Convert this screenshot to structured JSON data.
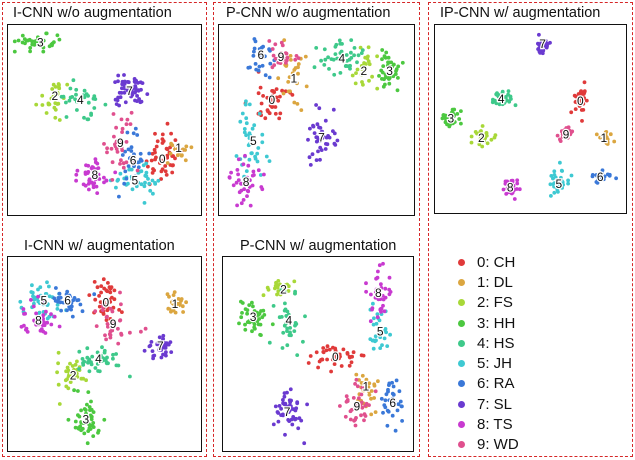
{
  "legend": {
    "items": [
      {
        "label": "0: CH",
        "color": "#e03a3a"
      },
      {
        "label": "1: DL",
        "color": "#dba640"
      },
      {
        "label": "2: FS",
        "color": "#a8d838"
      },
      {
        "label": "3: HH",
        "color": "#4cc840"
      },
      {
        "label": "4: HS",
        "color": "#3ec98a"
      },
      {
        "label": "5: JH",
        "color": "#3ec9d2"
      },
      {
        "label": "6: RA",
        "color": "#3a78d8"
      },
      {
        "label": "7: SL",
        "color": "#6a3ad0"
      },
      {
        "label": "8: TS",
        "color": "#c83ad0"
      },
      {
        "label": "9: WD",
        "color": "#e0508e"
      }
    ]
  },
  "chart_data": [
    {
      "type": "scatter",
      "title": "I-CNN w/o augmentation",
      "xlim": [
        0,
        100
      ],
      "ylim": [
        0,
        100
      ],
      "clusters": [
        {
          "label": "0",
          "cx": 82,
          "cy": 28,
          "sx": 6,
          "sy": 8,
          "n": 45
        },
        {
          "label": "1",
          "cx": 91,
          "cy": 34,
          "sx": 3,
          "sy": 3,
          "n": 15
        },
        {
          "label": "2",
          "cx": 23,
          "cy": 63,
          "sx": 5,
          "sy": 5,
          "n": 30
        },
        {
          "label": "3",
          "cx": 15,
          "cy": 93,
          "sx": 6,
          "sy": 2.5,
          "n": 35
        },
        {
          "label": "4",
          "cx": 37,
          "cy": 61,
          "sx": 7,
          "sy": 4,
          "n": 30
        },
        {
          "label": "5",
          "cx": 67,
          "cy": 16,
          "sx": 6,
          "sy": 4,
          "n": 40
        },
        {
          "label": "6",
          "cx": 66,
          "cy": 27,
          "sx": 4,
          "sy": 7,
          "n": 30
        },
        {
          "label": "7",
          "cx": 64,
          "cy": 66,
          "sx": 4.5,
          "sy": 4,
          "n": 55
        },
        {
          "label": "8",
          "cx": 45,
          "cy": 19,
          "sx": 6,
          "sy": 5,
          "n": 40
        },
        {
          "label": "9",
          "cx": 59,
          "cy": 37,
          "sx": 5,
          "sy": 8,
          "n": 35
        }
      ]
    },
    {
      "type": "scatter",
      "title": "P-CNN w/o augmentation",
      "xlim": [
        0,
        100
      ],
      "ylim": [
        0,
        100
      ],
      "clusters": [
        {
          "label": "0",
          "cx": 26,
          "cy": 61,
          "sx": 6,
          "sy": 8,
          "n": 35
        },
        {
          "label": "1",
          "cx": 38,
          "cy": 73,
          "sx": 4,
          "sy": 10,
          "n": 25
        },
        {
          "label": "2",
          "cx": 76,
          "cy": 77,
          "sx": 4,
          "sy": 5,
          "n": 25
        },
        {
          "label": "3",
          "cx": 90,
          "cy": 77,
          "sx": 3,
          "sy": 7,
          "n": 35
        },
        {
          "label": "4",
          "cx": 64,
          "cy": 84,
          "sx": 6,
          "sy": 5,
          "n": 40
        },
        {
          "label": "5",
          "cx": 16,
          "cy": 38,
          "sx": 4,
          "sy": 12,
          "n": 40
        },
        {
          "label": "6",
          "cx": 20,
          "cy": 86,
          "sx": 3,
          "sy": 6,
          "n": 25
        },
        {
          "label": "7",
          "cx": 53,
          "cy": 40,
          "sx": 4,
          "sy": 8,
          "n": 40
        },
        {
          "label": "8",
          "cx": 12,
          "cy": 15,
          "sx": 4,
          "sy": 7,
          "n": 40
        },
        {
          "label": "9",
          "cx": 31,
          "cy": 85,
          "sx": 5,
          "sy": 4,
          "n": 25
        }
      ]
    },
    {
      "type": "scatter",
      "title": "IP-CNN w/ augmentation",
      "xlim": [
        0,
        100
      ],
      "ylim": [
        0,
        100
      ],
      "clusters": [
        {
          "label": "0",
          "cx": 78,
          "cy": 60,
          "sx": 2,
          "sy": 4,
          "n": 30
        },
        {
          "label": "1",
          "cx": 91,
          "cy": 39,
          "sx": 2,
          "sy": 2,
          "n": 15
        },
        {
          "label": "2",
          "cx": 23,
          "cy": 39,
          "sx": 3,
          "sy": 2.5,
          "n": 25
        },
        {
          "label": "3",
          "cx": 6,
          "cy": 50,
          "sx": 2.5,
          "sy": 2.5,
          "n": 30
        },
        {
          "label": "4",
          "cx": 34,
          "cy": 61,
          "sx": 3,
          "sy": 2.5,
          "n": 30
        },
        {
          "label": "5",
          "cx": 66,
          "cy": 13,
          "sx": 2.5,
          "sy": 4,
          "n": 30
        },
        {
          "label": "6",
          "cx": 89,
          "cy": 17,
          "sx": 3,
          "sy": 2.5,
          "n": 25
        },
        {
          "label": "7",
          "cx": 57,
          "cy": 92,
          "sx": 2,
          "sy": 2.5,
          "n": 30
        },
        {
          "label": "8",
          "cx": 39,
          "cy": 11,
          "sx": 2.5,
          "sy": 3,
          "n": 30
        },
        {
          "label": "9",
          "cx": 70,
          "cy": 41,
          "sx": 2,
          "sy": 3,
          "n": 25
        }
      ]
    },
    {
      "type": "scatter",
      "title": "I-CNN w/ augmentation",
      "xlim": [
        0,
        100
      ],
      "ylim": [
        0,
        100
      ],
      "clusters": [
        {
          "label": "0",
          "cx": 51,
          "cy": 78,
          "sx": 4,
          "sy": 6,
          "n": 40
        },
        {
          "label": "1",
          "cx": 89,
          "cy": 77,
          "sx": 3,
          "sy": 3.5,
          "n": 25
        },
        {
          "label": "2",
          "cx": 33,
          "cy": 38,
          "sx": 4,
          "sy": 5,
          "n": 35
        },
        {
          "label": "3",
          "cx": 40,
          "cy": 14,
          "sx": 3.5,
          "sy": 6,
          "n": 50
        },
        {
          "label": "4",
          "cx": 47,
          "cy": 47,
          "sx": 7,
          "sy": 4,
          "n": 40
        },
        {
          "label": "5",
          "cx": 17,
          "cy": 79,
          "sx": 5,
          "sy": 5,
          "n": 40
        },
        {
          "label": "6",
          "cx": 30,
          "cy": 79,
          "sx": 5,
          "sy": 4,
          "n": 30
        },
        {
          "label": "7",
          "cx": 81,
          "cy": 54,
          "sx": 3.5,
          "sy": 3,
          "n": 35
        },
        {
          "label": "8",
          "cx": 14,
          "cy": 68,
          "sx": 5,
          "sy": 5,
          "n": 40
        },
        {
          "label": "9",
          "cx": 55,
          "cy": 66,
          "sx": 5,
          "sy": 6,
          "n": 35
        }
      ]
    },
    {
      "type": "scatter",
      "title": "P-CNN w/ augmentation",
      "xlim": [
        0,
        100
      ],
      "ylim": [
        0,
        100
      ],
      "clusters": [
        {
          "label": "0",
          "cx": 60,
          "cy": 48,
          "sx": 7,
          "sy": 3,
          "n": 40
        },
        {
          "label": "1",
          "cx": 77,
          "cy": 32,
          "sx": 3,
          "sy": 8,
          "n": 25
        },
        {
          "label": "2",
          "cx": 31,
          "cy": 85,
          "sx": 5,
          "sy": 3,
          "n": 25
        },
        {
          "label": "3",
          "cx": 14,
          "cy": 70,
          "sx": 5,
          "sy": 5,
          "n": 40
        },
        {
          "label": "4",
          "cx": 34,
          "cy": 68,
          "sx": 4,
          "sy": 8,
          "n": 35
        },
        {
          "label": "5",
          "cx": 85,
          "cy": 62,
          "sx": 3,
          "sy": 6,
          "n": 30
        },
        {
          "label": "6",
          "cx": 92,
          "cy": 23,
          "sx": 3,
          "sy": 8,
          "n": 30
        },
        {
          "label": "7",
          "cx": 33,
          "cy": 18,
          "sx": 5,
          "sy": 6,
          "n": 45
        },
        {
          "label": "8",
          "cx": 84,
          "cy": 83,
          "sx": 4,
          "sy": 8,
          "n": 35
        },
        {
          "label": "9",
          "cx": 72,
          "cy": 21,
          "sx": 4,
          "sy": 8,
          "n": 35
        }
      ]
    }
  ]
}
